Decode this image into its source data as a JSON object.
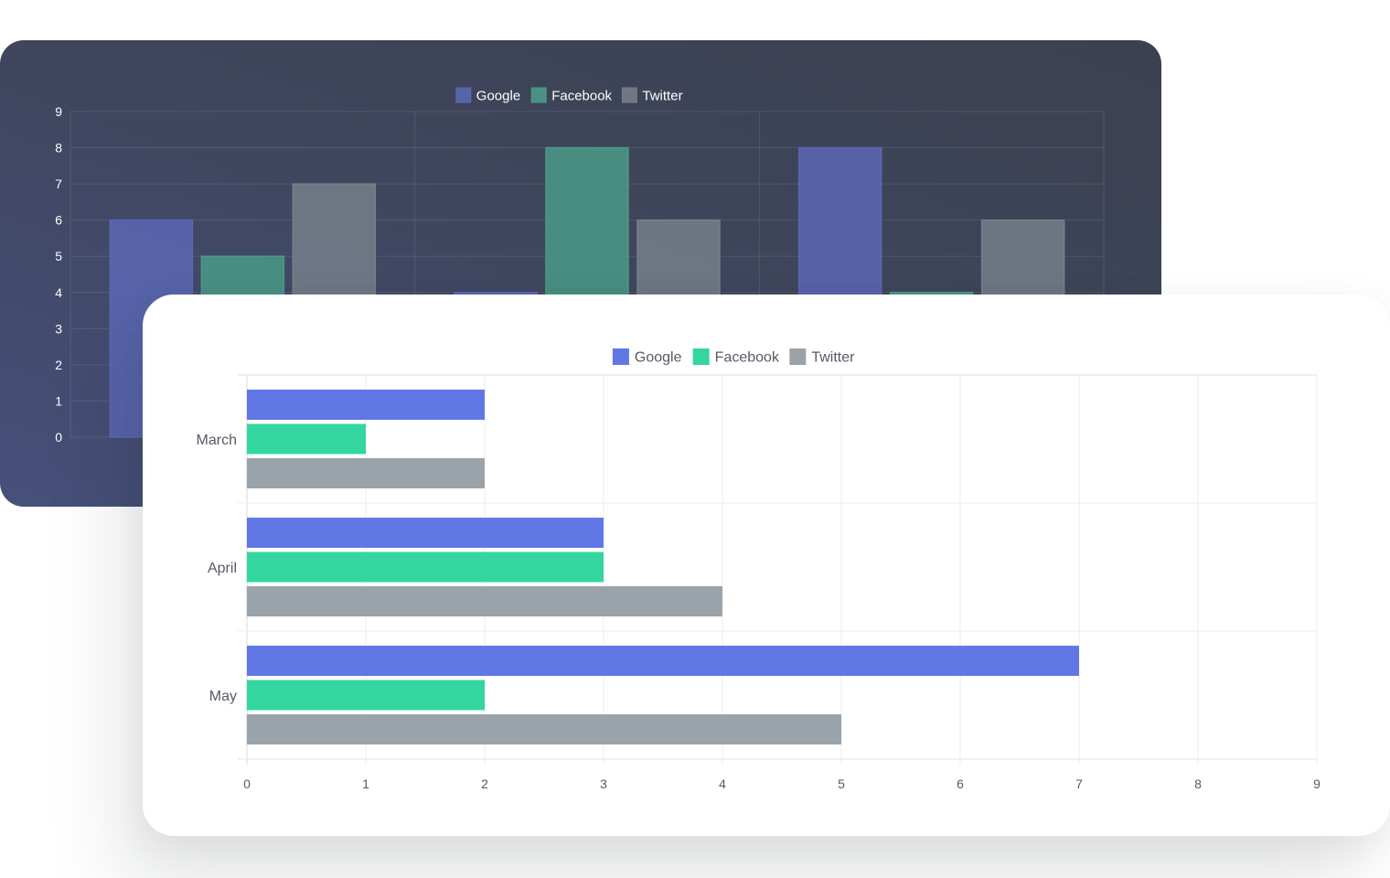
{
  "chart_data": [
    {
      "type": "bar",
      "orientation": "vertical",
      "theme": "dark",
      "title": "",
      "categories": [
        "",
        "",
        ""
      ],
      "series": [
        {
          "name": "Google",
          "color": "#5b67b3",
          "values": [
            6,
            4,
            8
          ]
        },
        {
          "name": "Facebook",
          "color": "#4a9a86",
          "values": [
            5,
            8,
            4
          ]
        },
        {
          "name": "Twitter",
          "color": "#777e8a",
          "values": [
            7,
            6,
            6
          ]
        }
      ],
      "ylim": [
        0,
        9
      ],
      "yticks": [
        "0",
        "1",
        "2",
        "3",
        "4",
        "5",
        "6",
        "7",
        "8",
        "9"
      ],
      "grid": true,
      "legend": "top-center"
    },
    {
      "type": "bar",
      "orientation": "horizontal",
      "theme": "light",
      "title": "",
      "categories": [
        "March",
        "April",
        "May"
      ],
      "series": [
        {
          "name": "Google",
          "color": "#6277e6",
          "values": [
            2,
            3,
            7
          ]
        },
        {
          "name": "Facebook",
          "color": "#33d69f",
          "values": [
            1,
            3,
            2
          ]
        },
        {
          "name": "Twitter",
          "color": "#9ba3aa",
          "values": [
            2,
            4,
            5
          ]
        }
      ],
      "xlim": [
        0,
        9
      ],
      "xticks": [
        "0",
        "1",
        "2",
        "3",
        "4",
        "5",
        "6",
        "7",
        "8",
        "9"
      ],
      "grid": true,
      "legend": "top-center"
    }
  ]
}
